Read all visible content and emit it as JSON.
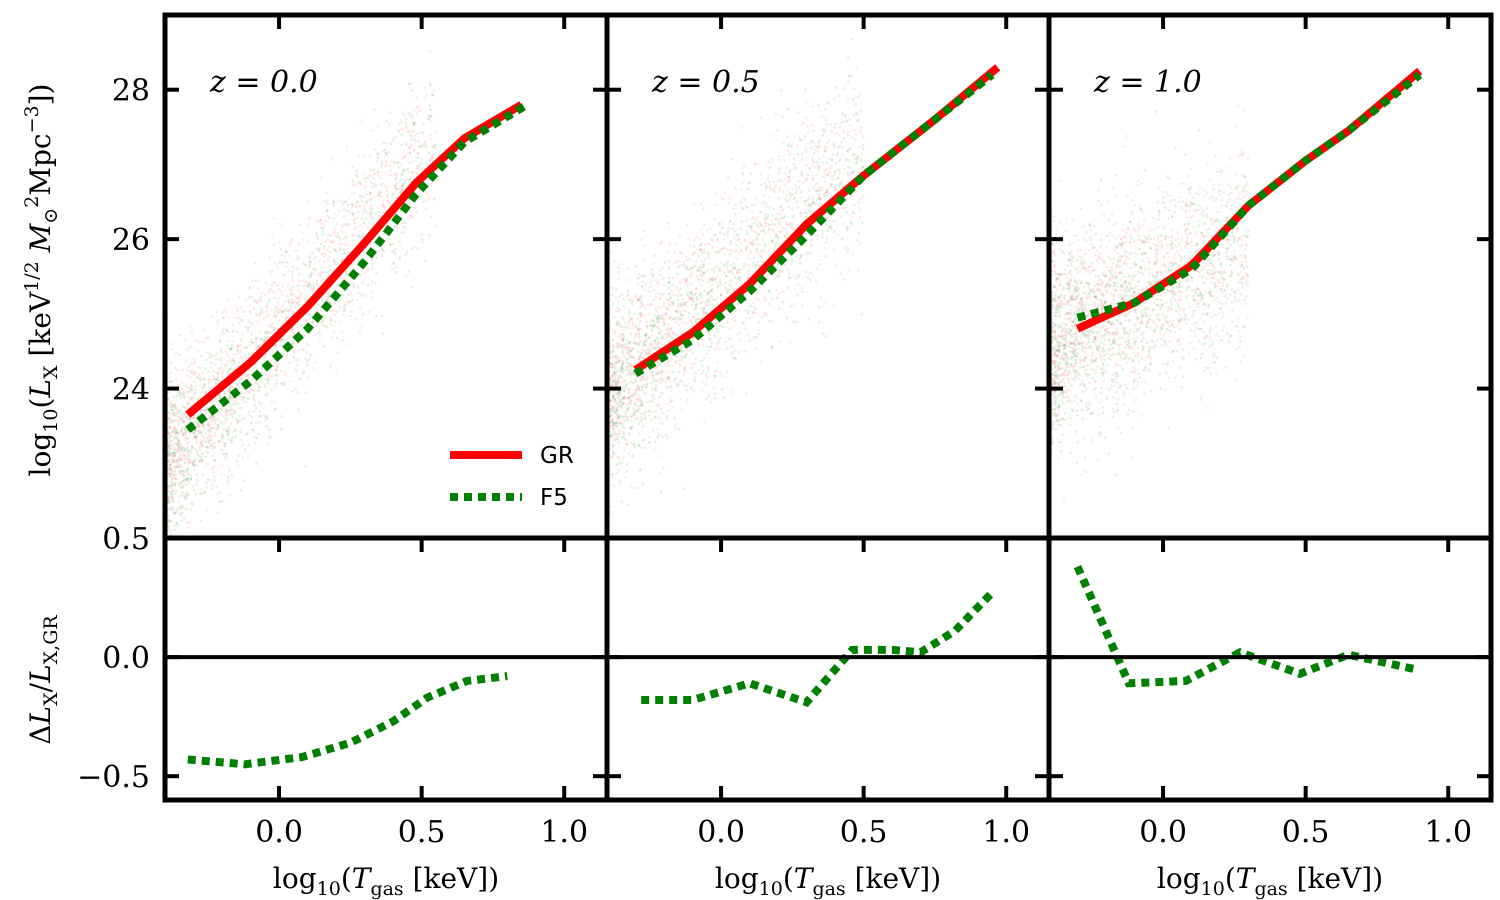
{
  "chart_data": {
    "type": "scatter",
    "layout": "2x3 panel grid",
    "colors": {
      "GR": "#ff0000",
      "F5": "#008000",
      "axis": "#000000"
    },
    "x_axis": {
      "ticks": [
        0.0,
        0.5,
        1.0
      ],
      "tick_labels": [
        "0.0",
        "0.5",
        "1.0"
      ],
      "range": [
        -0.4,
        1.15
      ],
      "label": {
        "base": "log",
        "base_sub": "10",
        "open": "(",
        "var": "T",
        "var_sub": "gas",
        "units": " [keV])"
      }
    },
    "top_y_axis": {
      "range": [
        22,
        29
      ],
      "ticks": [
        24,
        26,
        28
      ],
      "tick_labels": [
        "24",
        "26",
        "28"
      ],
      "label": {
        "base": "log",
        "base_sub": "10",
        "open": "(",
        "var": "L",
        "var_sub": "X",
        "units_a": " [keV",
        "units_a_sup": "1/2",
        "units_b": " M",
        "units_b_sub": "⊙",
        "units_b_sup": "2",
        "units_c": "Mpc",
        "units_c_sup": "−3",
        "close": "])"
      }
    },
    "bottom_y_axis": {
      "range": [
        -0.6,
        0.5
      ],
      "ticks": [
        -0.5,
        0.0,
        0.5
      ],
      "tick_labels": [
        "−0.5",
        "0.0",
        "0.5"
      ],
      "label": {
        "delta": "Δ",
        "var": "L",
        "var_sub": "X",
        "slash": "/",
        "var2": "L",
        "var2_sub": "X,GR"
      }
    },
    "legend": {
      "location": "lower-right of first panel",
      "entries": [
        {
          "label": "GR",
          "style": "solid",
          "color": "#ff0000"
        },
        {
          "label": "F5",
          "style": "dotted",
          "color": "#008000"
        }
      ]
    },
    "panels": [
      {
        "annotation": "z = 0.0",
        "scatter_cloud": {
          "x_min": -0.4,
          "x_max": 0.55,
          "y_at_x_min": 22.9,
          "slope": 4.5,
          "spread": 0.55
        },
        "series": [
          {
            "name": "GR",
            "x": [
              -0.32,
              -0.1,
              0.1,
              0.3,
              0.48,
              0.65,
              0.85
            ],
            "y": [
              23.65,
              24.35,
              25.1,
              25.95,
              26.75,
              27.35,
              27.8
            ]
          },
          {
            "name": "F5",
            "x": [
              -0.32,
              -0.1,
              0.1,
              0.3,
              0.48,
              0.65,
              0.87
            ],
            "y": [
              23.45,
              24.1,
              24.8,
              25.7,
              26.6,
              27.3,
              27.8
            ]
          }
        ],
        "ratio": {
          "name": "F5",
          "x": [
            -0.32,
            -0.12,
            0.08,
            0.25,
            0.4,
            0.52,
            0.66,
            0.8
          ],
          "y": [
            -0.43,
            -0.45,
            -0.42,
            -0.36,
            -0.27,
            -0.17,
            -0.1,
            -0.08
          ]
        }
      },
      {
        "annotation": "z = 0.5",
        "scatter_cloud": {
          "x_min": -0.4,
          "x_max": 0.5,
          "y_at_x_min": 23.8,
          "slope": 3.7,
          "spread": 0.6
        },
        "series": [
          {
            "name": "GR",
            "x": [
              -0.3,
              -0.1,
              0.1,
              0.3,
              0.5,
              0.75,
              0.97
            ],
            "y": [
              24.25,
              24.75,
              25.4,
              26.2,
              26.85,
              27.6,
              28.3
            ]
          },
          {
            "name": "F5",
            "x": [
              -0.3,
              -0.1,
              0.1,
              0.3,
              0.5,
              0.75,
              0.95
            ],
            "y": [
              24.2,
              24.65,
              25.3,
              26.05,
              26.85,
              27.6,
              28.2
            ]
          }
        ],
        "ratio": {
          "name": "F5",
          "x": [
            -0.28,
            -0.1,
            0.1,
            0.3,
            0.46,
            0.6,
            0.7,
            0.82,
            0.95
          ],
          "y": [
            -0.18,
            -0.18,
            -0.11,
            -0.19,
            0.03,
            0.03,
            0.02,
            0.11,
            0.27
          ]
        }
      },
      {
        "annotation": "z = 1.0",
        "scatter_cloud": {
          "x_min": -0.4,
          "x_max": 0.3,
          "y_at_x_min": 24.5,
          "slope": 2.0,
          "spread": 0.65
        },
        "series": [
          {
            "name": "GR",
            "x": [
              -0.3,
              -0.1,
              0.1,
              0.3,
              0.5,
              0.65,
              0.9
            ],
            "y": [
              24.8,
              25.15,
              25.65,
              26.45,
              27.05,
              27.45,
              28.25
            ]
          },
          {
            "name": "F5",
            "x": [
              -0.3,
              -0.1,
              0.1,
              0.3,
              0.5,
              0.65,
              0.9
            ],
            "y": [
              24.95,
              25.15,
              25.6,
              26.45,
              27.05,
              27.45,
              28.2
            ]
          }
        ],
        "ratio": {
          "name": "F5",
          "x": [
            -0.3,
            -0.12,
            0.08,
            0.27,
            0.48,
            0.65,
            0.88
          ],
          "y": [
            0.38,
            -0.11,
            -0.1,
            0.02,
            -0.07,
            0.01,
            -0.05
          ]
        }
      }
    ]
  }
}
